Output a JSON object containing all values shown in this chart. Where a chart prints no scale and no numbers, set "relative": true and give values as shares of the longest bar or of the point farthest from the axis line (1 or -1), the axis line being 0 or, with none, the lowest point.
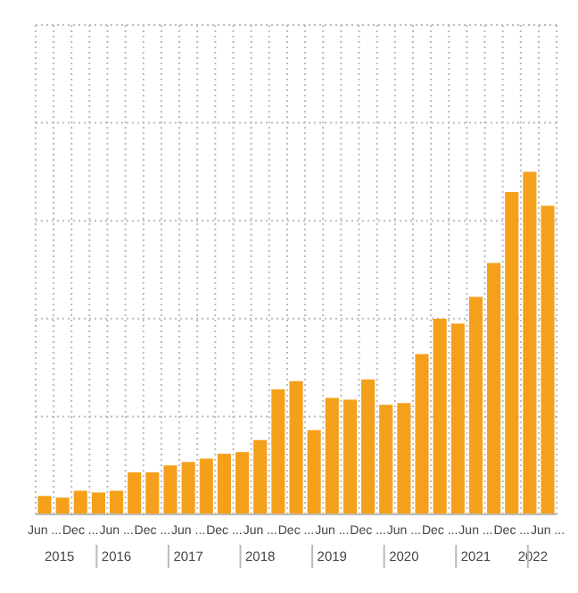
{
  "chart_data": {
    "type": "bar",
    "relative": true,
    "grid": true,
    "color": "#f5a01a",
    "categories": [
      "Jun ...",
      null,
      "Dec ...",
      null,
      "Jun ...",
      null,
      "Dec ...",
      null,
      "Jun ...",
      null,
      "Dec ...",
      null,
      "Jun ...",
      null,
      "Dec ...",
      null,
      "Jun ...",
      null,
      "Dec ...",
      null,
      "Jun ...",
      null,
      "Dec ...",
      null,
      "Jun ...",
      null,
      "Dec ...",
      null,
      "Jun ..."
    ],
    "values": [
      0.054,
      0.049,
      0.069,
      0.064,
      0.069,
      0.123,
      0.123,
      0.143,
      0.153,
      0.163,
      0.177,
      0.182,
      0.217,
      0.365,
      0.389,
      0.246,
      0.34,
      0.335,
      0.394,
      0.32,
      0.325,
      0.468,
      0.571,
      0.557,
      0.635,
      0.734,
      0.941,
      1,
      0.901
    ],
    "annotations": [
      "2015",
      "2016",
      "2017",
      "2018",
      "2019",
      "2020",
      "2021",
      "2022"
    ]
  }
}
